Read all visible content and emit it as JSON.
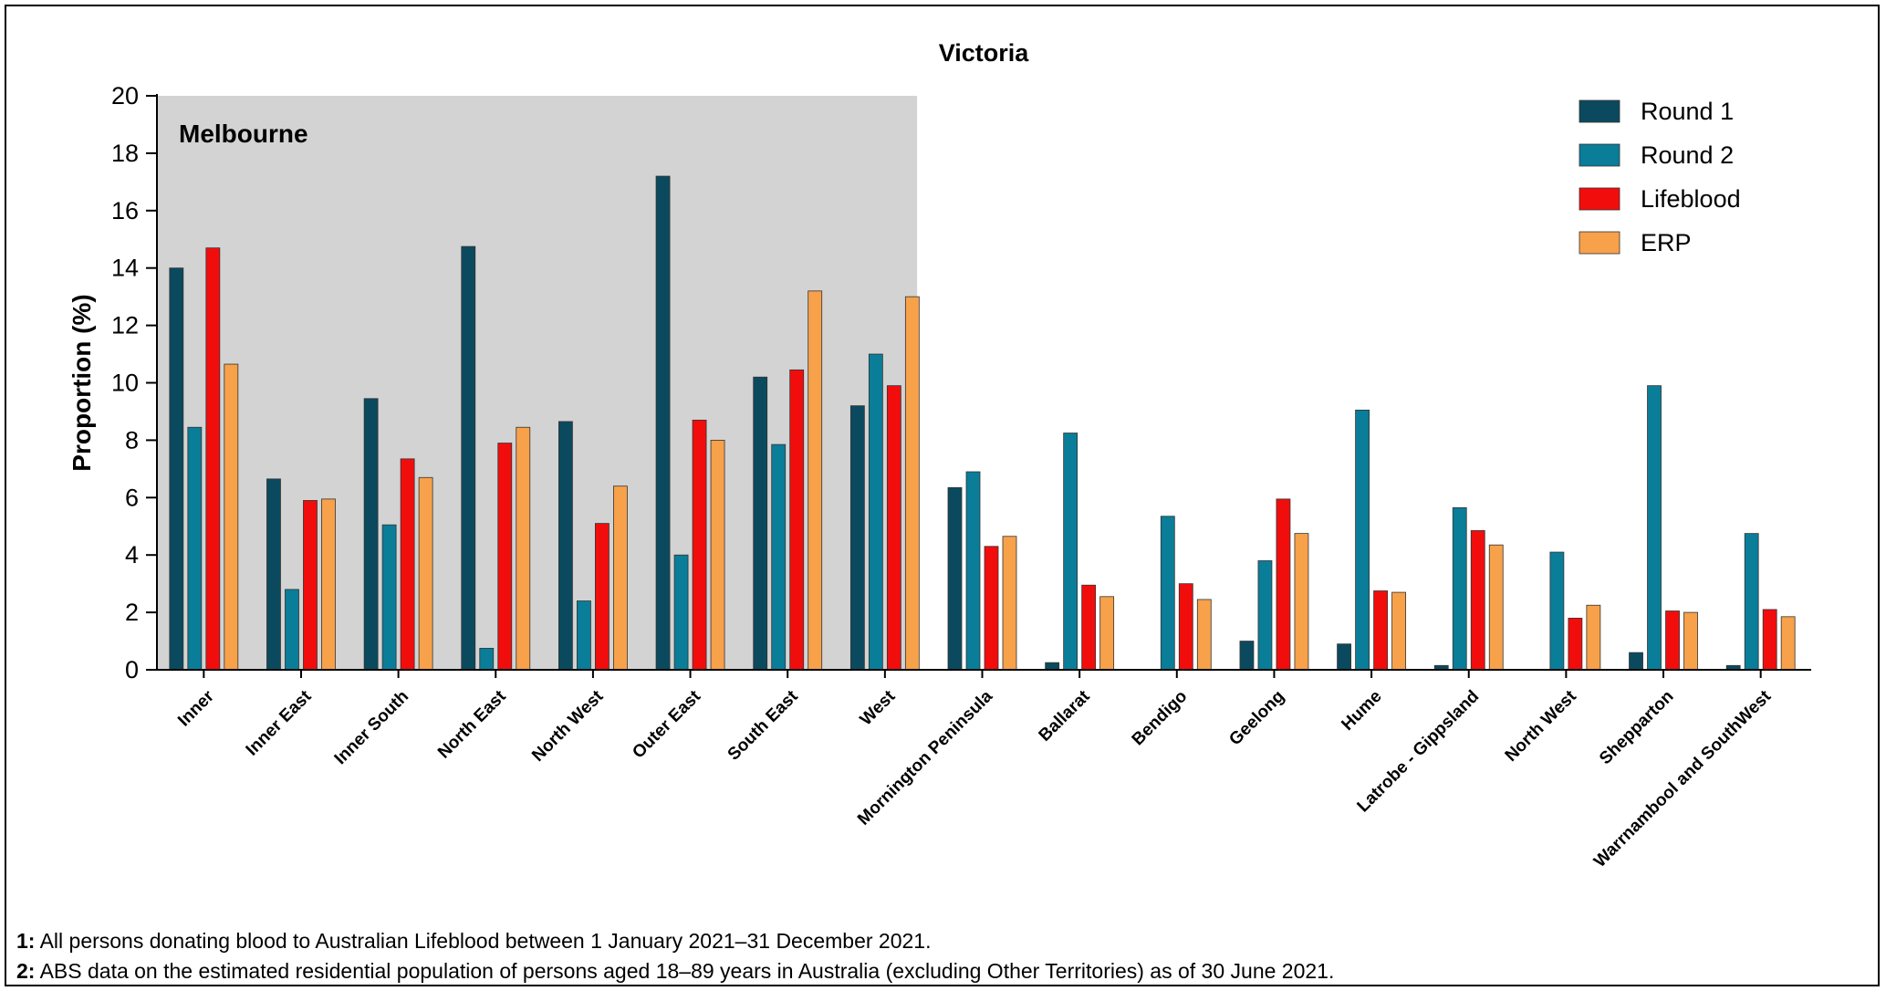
{
  "chart_data": {
    "type": "bar",
    "title": "Victoria",
    "ylabel": "Proportion (%)",
    "xlabel": "",
    "ylim": [
      0,
      20
    ],
    "yticks": [
      0,
      2,
      4,
      6,
      8,
      10,
      12,
      14,
      16,
      18,
      20
    ],
    "region_label": "Melbourne",
    "region_span_categories": 8,
    "legend_position": "top-right",
    "categories": [
      "Inner",
      "Inner East",
      "Inner South",
      "North East",
      "North West",
      "Outer East",
      "South East",
      "West",
      "Mornington Peninsula",
      "Ballarat",
      "Bendigo",
      "Geelong",
      "Hume",
      "Latrobe - Gippsland",
      "North West",
      "Shepparton",
      "Warrnambool and SouthWest"
    ],
    "series": [
      {
        "name": "Round 1",
        "color": "#0b4a5e",
        "values": [
          14.0,
          6.65,
          9.45,
          14.75,
          8.65,
          17.2,
          10.2,
          9.2,
          6.35,
          0.25,
          0,
          1.0,
          0.9,
          0.15,
          0,
          0.6,
          0.15
        ]
      },
      {
        "name": "Round 2",
        "color": "#0a7d98",
        "values": [
          8.45,
          2.8,
          5.05,
          0.75,
          2.4,
          4.0,
          7.85,
          11.0,
          6.9,
          8.25,
          5.35,
          3.8,
          9.05,
          5.65,
          4.1,
          9.9,
          4.75
        ]
      },
      {
        "name": "Lifeblood",
        "color": "#f20d0d",
        "values": [
          14.7,
          5.9,
          7.35,
          7.9,
          5.1,
          8.7,
          10.45,
          9.9,
          4.3,
          2.95,
          3.0,
          5.95,
          2.75,
          4.85,
          1.8,
          2.05,
          2.1
        ]
      },
      {
        "name": "ERP",
        "color": "#f7a14a",
        "values": [
          10.65,
          5.95,
          6.7,
          8.45,
          6.4,
          8.0,
          13.2,
          13.0,
          4.65,
          2.55,
          2.45,
          4.75,
          2.7,
          4.35,
          2.25,
          2.0,
          1.85
        ]
      }
    ]
  },
  "notes": [
    {
      "num": "1:",
      "text": " All persons donating blood to Australian Lifeblood between 1 January 2021–31 December 2021."
    },
    {
      "num": "2:",
      "text": " ABS data on the estimated residential population of persons aged 18–89 years in Australia (excluding Other Territories) as of 30 June 2021."
    }
  ]
}
